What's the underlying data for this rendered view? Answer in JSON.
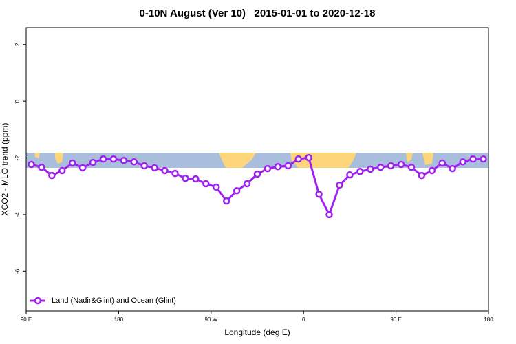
{
  "chart_data": {
    "type": "line",
    "title": "0-10N August (Ver 10)   2015-01-01 to 2020-12-18",
    "xlabel": "Longitude (deg E)",
    "ylabel": "XCO2 - MLO trend (ppm)",
    "xlim": [
      90,
      540
    ],
    "ylim": [
      -7.4,
      2.6
    ],
    "xticks": [
      {
        "value": 90,
        "label": "90 E"
      },
      {
        "value": 180,
        "label": "180"
      },
      {
        "value": 270,
        "label": "90 W"
      },
      {
        "value": 360,
        "label": "0"
      },
      {
        "value": 450,
        "label": "90 E"
      },
      {
        "value": 540,
        "label": "180"
      }
    ],
    "yticks": [
      2,
      0,
      -2,
      -4,
      -6
    ],
    "legend": "bottomleft",
    "x": [
      95,
      105,
      115,
      125,
      135,
      145,
      155,
      165,
      175,
      185,
      195,
      205,
      215,
      225,
      235,
      245,
      255,
      265,
      275,
      285,
      295,
      305,
      315,
      325,
      335,
      345,
      355,
      365,
      375,
      385,
      395,
      405,
      415,
      425,
      435,
      445,
      455,
      465,
      475,
      485,
      495,
      505,
      515,
      525,
      535
    ],
    "series": [
      {
        "name": "Land (Nadir&Glint) and Ocean (Glint)",
        "color": "#a020f0",
        "values": [
          -2.23,
          -2.33,
          -2.62,
          -2.45,
          -2.18,
          -2.35,
          -2.16,
          -2.04,
          -2.04,
          -2.09,
          -2.14,
          -2.28,
          -2.35,
          -2.45,
          -2.55,
          -2.72,
          -2.74,
          -2.91,
          -3.03,
          -3.52,
          -3.16,
          -2.91,
          -2.57,
          -2.38,
          -2.31,
          -2.28,
          -2.04,
          -1.99,
          -3.28,
          -4.0,
          -2.96,
          -2.6,
          -2.48,
          -2.4,
          -2.33,
          -2.28,
          -2.23,
          -2.33,
          -2.62,
          -2.45,
          -2.18,
          -2.38,
          -2.14,
          -2.04,
          -2.04
        ]
      }
    ]
  }
}
